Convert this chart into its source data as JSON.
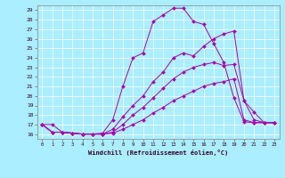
{
  "xlabel": "Windchill (Refroidissement éolien,°C)",
  "bg_color": "#aaeeff",
  "grid_color": "#ffffff",
  "line_color": "#aa00aa",
  "xlim": [
    -0.5,
    23.5
  ],
  "ylim": [
    15.5,
    29.5
  ],
  "xticks": [
    0,
    1,
    2,
    3,
    4,
    5,
    6,
    7,
    8,
    9,
    10,
    11,
    12,
    13,
    14,
    15,
    16,
    17,
    18,
    19,
    20,
    21,
    22,
    23
  ],
  "yticks": [
    16,
    17,
    18,
    19,
    20,
    21,
    22,
    23,
    24,
    25,
    26,
    27,
    28,
    29
  ],
  "series": [
    [
      17.0,
      17.0,
      16.2,
      16.1,
      16.0,
      16.0,
      16.1,
      17.5,
      21.0,
      24.0,
      24.5,
      27.8,
      28.5,
      29.2,
      29.2,
      27.8,
      27.5,
      25.5,
      23.5,
      19.8,
      17.3,
      17.2,
      17.2,
      17.2
    ],
    [
      17.0,
      16.2,
      16.2,
      16.1,
      16.0,
      16.0,
      16.0,
      16.5,
      17.8,
      19.0,
      20.0,
      21.5,
      22.5,
      24.0,
      24.5,
      24.2,
      25.2,
      26.0,
      26.5,
      26.8,
      19.5,
      18.3,
      17.2,
      17.2
    ],
    [
      17.0,
      16.2,
      16.2,
      16.1,
      16.0,
      16.0,
      16.0,
      16.2,
      17.0,
      18.0,
      18.8,
      19.8,
      20.8,
      21.8,
      22.5,
      23.0,
      23.3,
      23.5,
      23.2,
      23.3,
      19.5,
      17.5,
      17.2,
      17.2
    ],
    [
      17.0,
      16.2,
      16.2,
      16.1,
      16.0,
      16.0,
      16.0,
      16.1,
      16.5,
      17.0,
      17.5,
      18.2,
      18.8,
      19.5,
      20.0,
      20.5,
      21.0,
      21.3,
      21.5,
      21.8,
      17.5,
      17.2,
      17.2,
      17.2
    ]
  ]
}
